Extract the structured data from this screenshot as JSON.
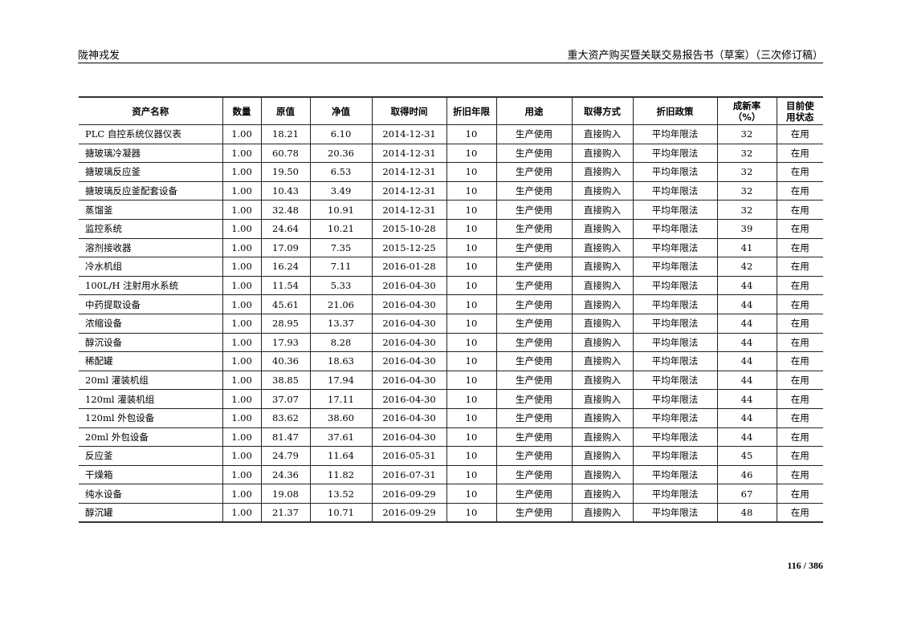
{
  "header": {
    "company": "陇神戎发",
    "doc_title": "重大资产购买暨关联交易报告书（草案）（三次修订稿）"
  },
  "table": {
    "columns": [
      "资产名称",
      "数量",
      "原值",
      "净值",
      "取得时间",
      "折旧年限",
      "用途",
      "取得方式",
      "折旧政策",
      "成新率（%）",
      "目前使用状态"
    ],
    "rows": [
      [
        "PLC 自控系统仪器仪表",
        "1.00",
        "18.21",
        "6.10",
        "2014-12-31",
        "10",
        "生产使用",
        "直接购入",
        "平均年限法",
        "32",
        "在用"
      ],
      [
        "搪玻璃冷凝器",
        "1.00",
        "60.78",
        "20.36",
        "2014-12-31",
        "10",
        "生产使用",
        "直接购入",
        "平均年限法",
        "32",
        "在用"
      ],
      [
        "搪玻璃反应釜",
        "1.00",
        "19.50",
        "6.53",
        "2014-12-31",
        "10",
        "生产使用",
        "直接购入",
        "平均年限法",
        "32",
        "在用"
      ],
      [
        "搪玻璃反应釜配套设备",
        "1.00",
        "10.43",
        "3.49",
        "2014-12-31",
        "10",
        "生产使用",
        "直接购入",
        "平均年限法",
        "32",
        "在用"
      ],
      [
        "蒸馏釜",
        "1.00",
        "32.48",
        "10.91",
        "2014-12-31",
        "10",
        "生产使用",
        "直接购入",
        "平均年限法",
        "32",
        "在用"
      ],
      [
        "监控系统",
        "1.00",
        "24.64",
        "10.21",
        "2015-10-28",
        "10",
        "生产使用",
        "直接购入",
        "平均年限法",
        "39",
        "在用"
      ],
      [
        "溶剂接收器",
        "1.00",
        "17.09",
        "7.35",
        "2015-12-25",
        "10",
        "生产使用",
        "直接购入",
        "平均年限法",
        "41",
        "在用"
      ],
      [
        "冷水机组",
        "1.00",
        "16.24",
        "7.11",
        "2016-01-28",
        "10",
        "生产使用",
        "直接购入",
        "平均年限法",
        "42",
        "在用"
      ],
      [
        "100L/H 注射用水系统",
        "1.00",
        "11.54",
        "5.33",
        "2016-04-30",
        "10",
        "生产使用",
        "直接购入",
        "平均年限法",
        "44",
        "在用"
      ],
      [
        "中药提取设备",
        "1.00",
        "45.61",
        "21.06",
        "2016-04-30",
        "10",
        "生产使用",
        "直接购入",
        "平均年限法",
        "44",
        "在用"
      ],
      [
        "浓缩设备",
        "1.00",
        "28.95",
        "13.37",
        "2016-04-30",
        "10",
        "生产使用",
        "直接购入",
        "平均年限法",
        "44",
        "在用"
      ],
      [
        "醇沉设备",
        "1.00",
        "17.93",
        "8.28",
        "2016-04-30",
        "10",
        "生产使用",
        "直接购入",
        "平均年限法",
        "44",
        "在用"
      ],
      [
        "稀配罐",
        "1.00",
        "40.36",
        "18.63",
        "2016-04-30",
        "10",
        "生产使用",
        "直接购入",
        "平均年限法",
        "44",
        "在用"
      ],
      [
        "20ml 灌装机组",
        "1.00",
        "38.85",
        "17.94",
        "2016-04-30",
        "10",
        "生产使用",
        "直接购入",
        "平均年限法",
        "44",
        "在用"
      ],
      [
        "120ml 灌装机组",
        "1.00",
        "37.07",
        "17.11",
        "2016-04-30",
        "10",
        "生产使用",
        "直接购入",
        "平均年限法",
        "44",
        "在用"
      ],
      [
        "120ml 外包设备",
        "1.00",
        "83.62",
        "38.60",
        "2016-04-30",
        "10",
        "生产使用",
        "直接购入",
        "平均年限法",
        "44",
        "在用"
      ],
      [
        "20ml 外包设备",
        "1.00",
        "81.47",
        "37.61",
        "2016-04-30",
        "10",
        "生产使用",
        "直接购入",
        "平均年限法",
        "44",
        "在用"
      ],
      [
        "反应釜",
        "1.00",
        "24.79",
        "11.64",
        "2016-05-31",
        "10",
        "生产使用",
        "直接购入",
        "平均年限法",
        "45",
        "在用"
      ],
      [
        "干燥箱",
        "1.00",
        "24.36",
        "11.82",
        "2016-07-31",
        "10",
        "生产使用",
        "直接购入",
        "平均年限法",
        "46",
        "在用"
      ],
      [
        "纯水设备",
        "1.00",
        "19.08",
        "13.52",
        "2016-09-29",
        "10",
        "生产使用",
        "直接购入",
        "平均年限法",
        "67",
        "在用"
      ],
      [
        "醇沉罐",
        "1.00",
        "21.37",
        "10.71",
        "2016-09-29",
        "10",
        "生产使用",
        "直接购入",
        "平均年限法",
        "48",
        "在用"
      ]
    ]
  },
  "footer": {
    "page_number": "116 / 386"
  }
}
